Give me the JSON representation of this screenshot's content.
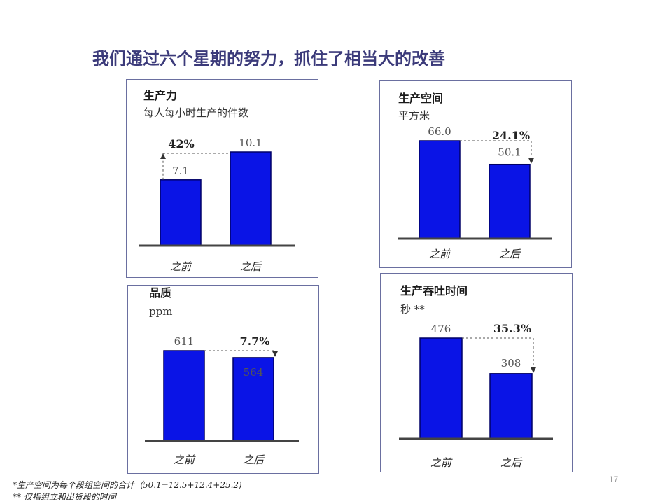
{
  "title": "我们通过六个星期的努力，抓住了相当大的改善",
  "chart_data": [
    {
      "type": "bar",
      "title": "生产力",
      "subtitle": "每人每小时生产的件数",
      "categories": [
        "之前",
        "之后"
      ],
      "values": [
        7.1,
        10.1
      ],
      "value_labels": [
        "7.1",
        "10.1"
      ],
      "change_label": "42%"
    },
    {
      "type": "bar",
      "title": "生产空间",
      "subtitle": "平方米",
      "categories": [
        "之前",
        "之后"
      ],
      "values": [
        66.0,
        50.1
      ],
      "value_labels": [
        "66.0",
        "50.1"
      ],
      "change_label": "24.1%"
    },
    {
      "type": "bar",
      "title": "品质",
      "subtitle": "ppm",
      "categories": [
        "之前",
        "之后"
      ],
      "values": [
        611,
        564
      ],
      "value_labels": [
        "611",
        "564"
      ],
      "change_label": "7.7%"
    },
    {
      "type": "bar",
      "title": "生产吞吐时间",
      "subtitle": "秒 **",
      "categories": [
        "之前",
        "之后"
      ],
      "values": [
        476,
        308
      ],
      "value_labels": [
        "476",
        "308"
      ],
      "change_label": "35.3%"
    }
  ],
  "footnotes": [
    "*生产空间为每个段组空间的合计（50.1=12.5+12.4+25.2)",
    "** 仅指组立和出货段的时间"
  ],
  "page_number": "17",
  "colors": {
    "bar": "#0a14e6",
    "bar_edge": "#000066",
    "title": "#3b3a7a"
  }
}
